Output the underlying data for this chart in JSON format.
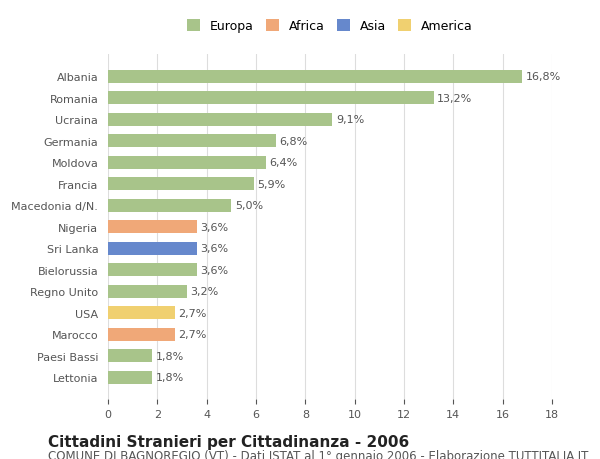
{
  "countries": [
    "Albania",
    "Romania",
    "Ucraina",
    "Germania",
    "Moldova",
    "Francia",
    "Macedonia d/N.",
    "Nigeria",
    "Sri Lanka",
    "Bielorussia",
    "Regno Unito",
    "USA",
    "Marocco",
    "Paesi Bassi",
    "Lettonia"
  ],
  "values": [
    16.8,
    13.2,
    9.1,
    6.8,
    6.4,
    5.9,
    5.0,
    3.6,
    3.6,
    3.6,
    3.2,
    2.7,
    2.7,
    1.8,
    1.8
  ],
  "labels": [
    "16,8%",
    "13,2%",
    "9,1%",
    "6,8%",
    "6,4%",
    "5,9%",
    "5,0%",
    "3,6%",
    "3,6%",
    "3,6%",
    "3,2%",
    "2,7%",
    "2,7%",
    "1,8%",
    "1,8%"
  ],
  "continents": [
    "Europa",
    "Europa",
    "Europa",
    "Europa",
    "Europa",
    "Europa",
    "Europa",
    "Africa",
    "Asia",
    "Europa",
    "Europa",
    "America",
    "Africa",
    "Europa",
    "Europa"
  ],
  "colors": {
    "Europa": "#a8c48a",
    "Africa": "#f0a878",
    "Asia": "#6688cc",
    "America": "#f0d070"
  },
  "legend_order": [
    "Europa",
    "Africa",
    "Asia",
    "America"
  ],
  "title": "Cittadini Stranieri per Cittadinanza - 2006",
  "subtitle": "COMUNE DI BAGNOREGIO (VT) - Dati ISTAT al 1° gennaio 2006 - Elaborazione TUTTITALIA.IT",
  "xlim": [
    0,
    18
  ],
  "xticks": [
    0,
    2,
    4,
    6,
    8,
    10,
    12,
    14,
    16,
    18
  ],
  "background_color": "#ffffff",
  "grid_color": "#dddddd",
  "bar_height": 0.6,
  "title_fontsize": 11,
  "subtitle_fontsize": 8.5,
  "label_fontsize": 8,
  "tick_fontsize": 8,
  "legend_fontsize": 9
}
